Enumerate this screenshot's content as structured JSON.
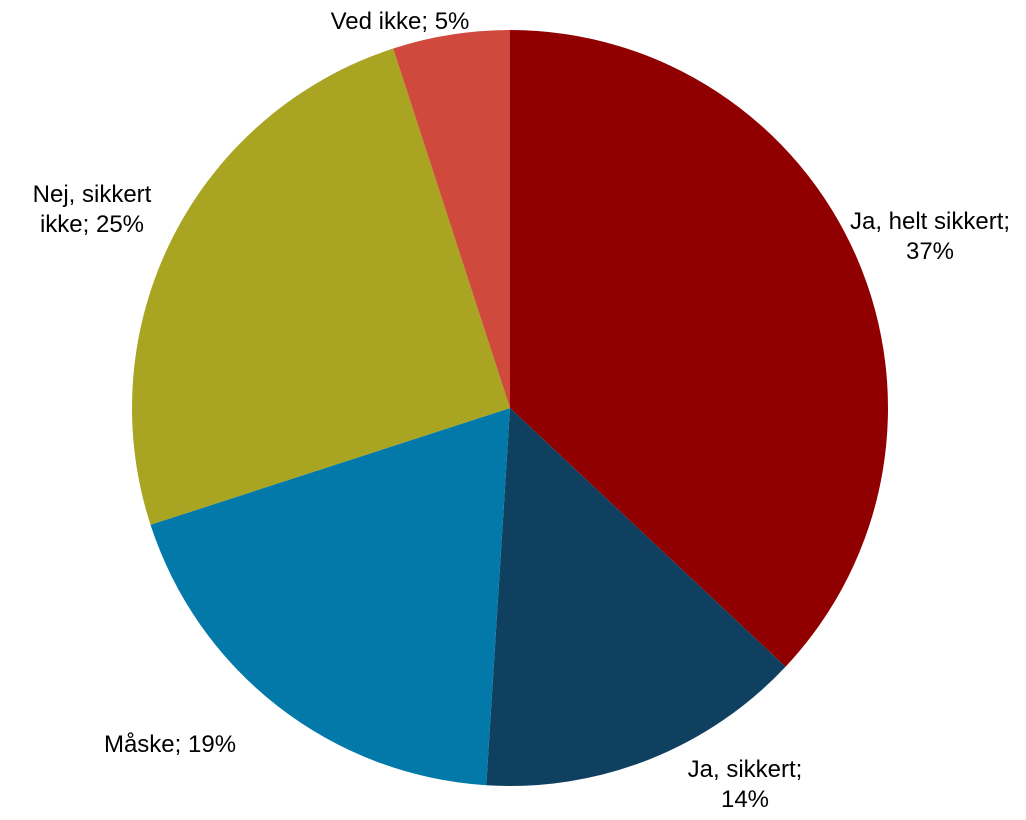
{
  "chart_data": {
    "type": "pie",
    "values": [
      37,
      14,
      19,
      25,
      5
    ],
    "value_labels": [
      "Ja, helt sikkert; 37%",
      "Ja, sikkert; 14%",
      "Måske; 19%",
      "Nej, sikkert ikke; 25%",
      "Ved ikke; 5%"
    ],
    "colors": [
      "#900000",
      "#0f405f",
      "#0279a9",
      "#a9a522",
      "#d0493d"
    ]
  }
}
